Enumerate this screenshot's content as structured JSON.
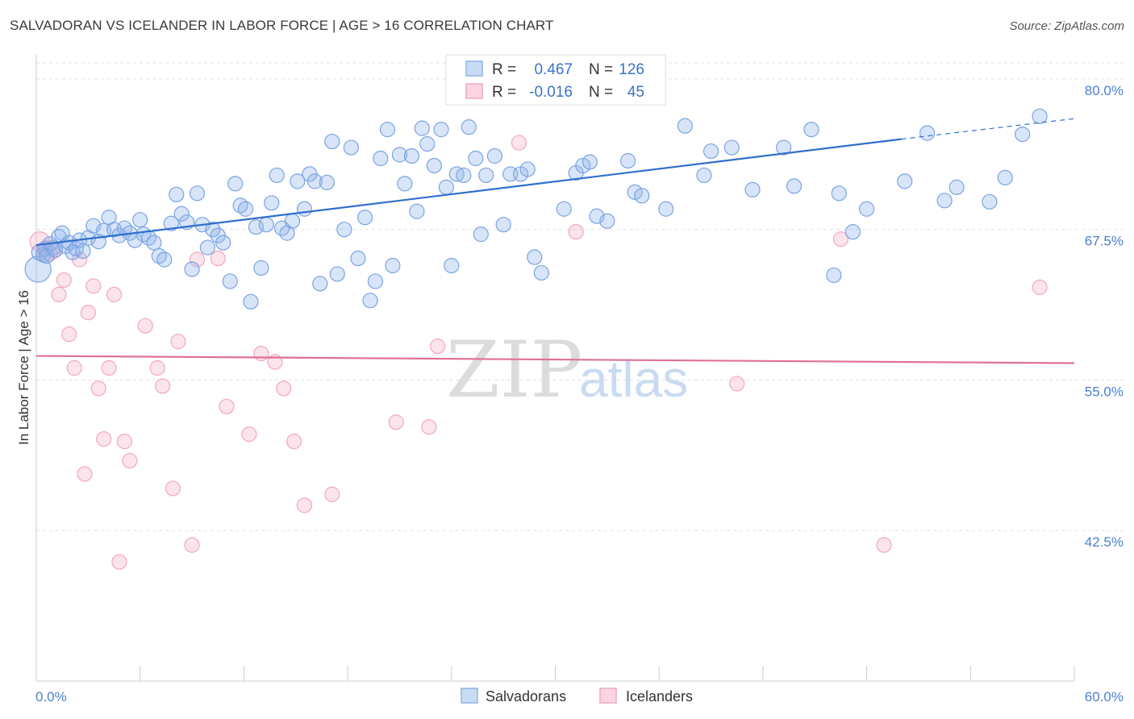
{
  "header": {
    "title": "SALVADORAN VS ICELANDER IN LABOR FORCE | AGE > 16 CORRELATION CHART",
    "source": "Source: ZipAtlas.com"
  },
  "watermark": {
    "zip": "ZIP",
    "atlas": "atlas"
  },
  "legend": {
    "rows": [
      {
        "r_label": "R =",
        "r_value": "0.467",
        "n_label": "N =",
        "n_value": "126",
        "color": "#8fb4ea"
      },
      {
        "r_label": "R =",
        "r_value": "-0.016",
        "n_label": "N =",
        "n_value": "45",
        "color": "#f2a7c0"
      }
    ]
  },
  "bottom_legend": [
    {
      "label": "Salvadorans",
      "color": "#8fb4ea"
    },
    {
      "label": "Icelanders",
      "color": "#f2a7c0"
    }
  ],
  "chart_data": {
    "type": "scatter",
    "title": "SALVADORAN VS ICELANDER IN LABOR FORCE | AGE > 16 CORRELATION CHART",
    "ylabel": "In Labor Force | Age > 16",
    "xlabel": "",
    "xlim": [
      0,
      60
    ],
    "ylim": [
      30,
      82
    ],
    "x_tick_labels": [
      "0.0%",
      "60.0%"
    ],
    "y_ticks": [
      42.5,
      55.0,
      67.5,
      80.0
    ],
    "y_tick_labels": [
      "42.5%",
      "55.0%",
      "67.5%",
      "80.0%"
    ],
    "grid": "horizontal dashed",
    "colors": {
      "salvadorans": "#8fb4ea",
      "icelanders": "#f2a7c0",
      "salv_line": "#2f6fce",
      "ice_line": "#e07098"
    },
    "series": [
      {
        "name": "Salvadorans",
        "trend": {
          "x0": 0,
          "y0": 66.2,
          "x1": 50,
          "y1": 75.0,
          "dash_to_x": 60,
          "dash_to_y": 76.7
        },
        "points": [
          [
            0.1,
            64.2,
            16
          ],
          [
            0.2,
            65.6,
            10
          ],
          [
            0.4,
            65.4,
            9
          ],
          [
            0.5,
            65.9,
            9
          ],
          [
            0.6,
            65.3,
            9
          ],
          [
            0.8,
            66.3,
            9
          ],
          [
            1.0,
            66.0,
            9
          ],
          [
            1.1,
            65.8,
            9
          ],
          [
            1.3,
            66.9,
            9
          ],
          [
            1.5,
            67.2,
            9
          ],
          [
            1.7,
            66.1,
            9
          ],
          [
            1.9,
            66.4,
            9
          ],
          [
            2.1,
            65.6,
            9
          ],
          [
            2.3,
            65.9,
            9
          ],
          [
            2.5,
            66.6,
            9
          ],
          [
            2.7,
            65.7,
            9
          ],
          [
            3.0,
            66.8,
            9
          ],
          [
            3.3,
            67.8,
            9
          ],
          [
            3.6,
            66.5,
            9
          ],
          [
            3.9,
            67.4,
            9
          ],
          [
            4.2,
            68.5,
            9
          ],
          [
            4.5,
            67.5,
            9
          ],
          [
            4.8,
            67.0,
            9
          ],
          [
            5.1,
            67.6,
            9
          ],
          [
            5.4,
            67.2,
            9
          ],
          [
            5.7,
            66.6,
            9
          ],
          [
            6.0,
            68.3,
            9
          ],
          [
            6.2,
            67.1,
            9
          ],
          [
            6.5,
            66.8,
            9
          ],
          [
            6.8,
            66.4,
            9
          ],
          [
            7.1,
            65.3,
            9
          ],
          [
            7.4,
            65.0,
            9
          ],
          [
            7.8,
            68.0,
            9
          ],
          [
            8.1,
            70.4,
            9
          ],
          [
            8.4,
            68.8,
            9
          ],
          [
            8.7,
            68.1,
            9
          ],
          [
            9.0,
            64.2,
            9
          ],
          [
            9.3,
            70.5,
            9
          ],
          [
            9.6,
            67.9,
            9
          ],
          [
            9.9,
            66.0,
            9
          ],
          [
            10.2,
            67.5,
            9
          ],
          [
            10.5,
            67.0,
            9
          ],
          [
            10.8,
            66.4,
            9
          ],
          [
            11.2,
            63.2,
            9
          ],
          [
            11.5,
            71.3,
            9
          ],
          [
            11.8,
            69.5,
            9
          ],
          [
            12.1,
            69.2,
            9
          ],
          [
            12.4,
            61.5,
            9
          ],
          [
            12.7,
            67.7,
            9
          ],
          [
            13.0,
            64.3,
            9
          ],
          [
            13.3,
            67.9,
            9
          ],
          [
            13.6,
            69.7,
            9
          ],
          [
            13.9,
            72.0,
            9
          ],
          [
            14.2,
            67.6,
            9
          ],
          [
            14.5,
            67.2,
            9
          ],
          [
            14.8,
            68.2,
            9
          ],
          [
            15.1,
            71.5,
            9
          ],
          [
            15.5,
            69.2,
            9
          ],
          [
            15.8,
            72.1,
            9
          ],
          [
            16.1,
            71.5,
            9
          ],
          [
            16.4,
            63.0,
            9
          ],
          [
            16.8,
            71.4,
            9
          ],
          [
            17.1,
            74.8,
            9
          ],
          [
            17.4,
            63.8,
            9
          ],
          [
            17.8,
            67.5,
            9
          ],
          [
            18.2,
            74.3,
            9
          ],
          [
            18.6,
            65.1,
            9
          ],
          [
            19.0,
            68.5,
            9
          ],
          [
            19.3,
            61.6,
            9
          ],
          [
            19.6,
            63.2,
            9
          ],
          [
            19.9,
            73.4,
            9
          ],
          [
            20.3,
            75.8,
            9
          ],
          [
            20.6,
            64.5,
            9
          ],
          [
            21.0,
            73.7,
            9
          ],
          [
            21.3,
            71.3,
            9
          ],
          [
            21.7,
            73.6,
            9
          ],
          [
            22.0,
            69.0,
            9
          ],
          [
            22.3,
            75.9,
            9
          ],
          [
            22.6,
            74.6,
            9
          ],
          [
            23.0,
            72.8,
            9
          ],
          [
            23.4,
            75.8,
            9
          ],
          [
            23.7,
            71.0,
            9
          ],
          [
            24.0,
            64.5,
            9
          ],
          [
            24.3,
            72.1,
            9
          ],
          [
            24.7,
            72.0,
            9
          ],
          [
            25.0,
            76.0,
            9
          ],
          [
            25.4,
            73.4,
            9
          ],
          [
            25.7,
            67.1,
            9
          ],
          [
            26.0,
            72.0,
            9
          ],
          [
            26.5,
            73.6,
            9
          ],
          [
            27.0,
            67.9,
            9
          ],
          [
            27.4,
            72.1,
            9
          ],
          [
            28.0,
            72.1,
            9
          ],
          [
            28.4,
            72.5,
            9
          ],
          [
            28.8,
            65.2,
            9
          ],
          [
            29.2,
            63.9,
            9
          ],
          [
            30.5,
            69.2,
            9
          ],
          [
            31.2,
            72.2,
            9
          ],
          [
            31.6,
            72.8,
            9
          ],
          [
            32.0,
            73.1,
            9
          ],
          [
            32.4,
            68.6,
            9
          ],
          [
            33.0,
            68.2,
            9
          ],
          [
            34.2,
            73.2,
            9
          ],
          [
            34.6,
            70.6,
            9
          ],
          [
            35.0,
            70.3,
            9
          ],
          [
            36.4,
            69.2,
            9
          ],
          [
            37.5,
            76.1,
            9
          ],
          [
            38.6,
            72.0,
            9
          ],
          [
            39.0,
            74.0,
            9
          ],
          [
            40.2,
            74.3,
            9
          ],
          [
            41.4,
            70.8,
            9
          ],
          [
            43.2,
            74.3,
            9
          ],
          [
            43.8,
            71.1,
            9
          ],
          [
            44.8,
            75.8,
            9
          ],
          [
            46.1,
            63.7,
            9
          ],
          [
            46.4,
            70.5,
            9
          ],
          [
            47.2,
            67.3,
            9
          ],
          [
            48.0,
            69.2,
            9
          ],
          [
            50.2,
            71.5,
            9
          ],
          [
            51.5,
            75.5,
            9
          ],
          [
            52.5,
            69.9,
            9
          ],
          [
            53.2,
            71.0,
            9
          ],
          [
            55.1,
            69.8,
            9
          ],
          [
            56.0,
            71.8,
            9
          ],
          [
            57.0,
            75.4,
            9
          ],
          [
            58.0,
            76.9,
            9
          ]
        ]
      },
      {
        "name": "Icelanders",
        "trend": {
          "x0": 0,
          "y0": 57.0,
          "x1": 60,
          "y1": 56.4
        },
        "points": [
          [
            0.2,
            66.5,
            12
          ],
          [
            0.4,
            65.8,
            9
          ],
          [
            0.6,
            66.0,
            9
          ],
          [
            0.8,
            65.5,
            9
          ],
          [
            1.0,
            65.7,
            9
          ],
          [
            1.3,
            62.1,
            9
          ],
          [
            1.6,
            63.3,
            9
          ],
          [
            1.9,
            58.8,
            9
          ],
          [
            2.2,
            56.0,
            9
          ],
          [
            2.5,
            65.0,
            9
          ],
          [
            2.8,
            47.2,
            9
          ],
          [
            3.0,
            60.6,
            9
          ],
          [
            3.3,
            62.8,
            9
          ],
          [
            3.6,
            54.3,
            9
          ],
          [
            3.9,
            50.1,
            9
          ],
          [
            4.2,
            56.0,
            9
          ],
          [
            4.5,
            62.1,
            9
          ],
          [
            4.8,
            39.9,
            9
          ],
          [
            5.1,
            49.9,
            9
          ],
          [
            5.4,
            48.3,
            9
          ],
          [
            6.3,
            59.5,
            9
          ],
          [
            7.0,
            56.0,
            9
          ],
          [
            7.3,
            54.5,
            9
          ],
          [
            7.9,
            46.0,
            9
          ],
          [
            8.2,
            58.2,
            9
          ],
          [
            9.0,
            41.3,
            9
          ],
          [
            9.3,
            65.0,
            9
          ],
          [
            10.5,
            65.1,
            9
          ],
          [
            11.0,
            52.8,
            9
          ],
          [
            12.3,
            50.5,
            9
          ],
          [
            13.0,
            57.2,
            9
          ],
          [
            13.8,
            56.5,
            9
          ],
          [
            14.3,
            54.3,
            9
          ],
          [
            14.9,
            49.9,
            9
          ],
          [
            15.5,
            44.6,
            9
          ],
          [
            17.1,
            45.5,
            9
          ],
          [
            20.8,
            51.5,
            9
          ],
          [
            22.7,
            51.1,
            9
          ],
          [
            23.2,
            57.8,
            9
          ],
          [
            27.9,
            74.7,
            9
          ],
          [
            31.2,
            67.3,
            9
          ],
          [
            40.5,
            54.7,
            9
          ],
          [
            46.5,
            66.7,
            9
          ],
          [
            49.0,
            41.3,
            9
          ],
          [
            58.0,
            62.7,
            9
          ]
        ]
      }
    ]
  }
}
